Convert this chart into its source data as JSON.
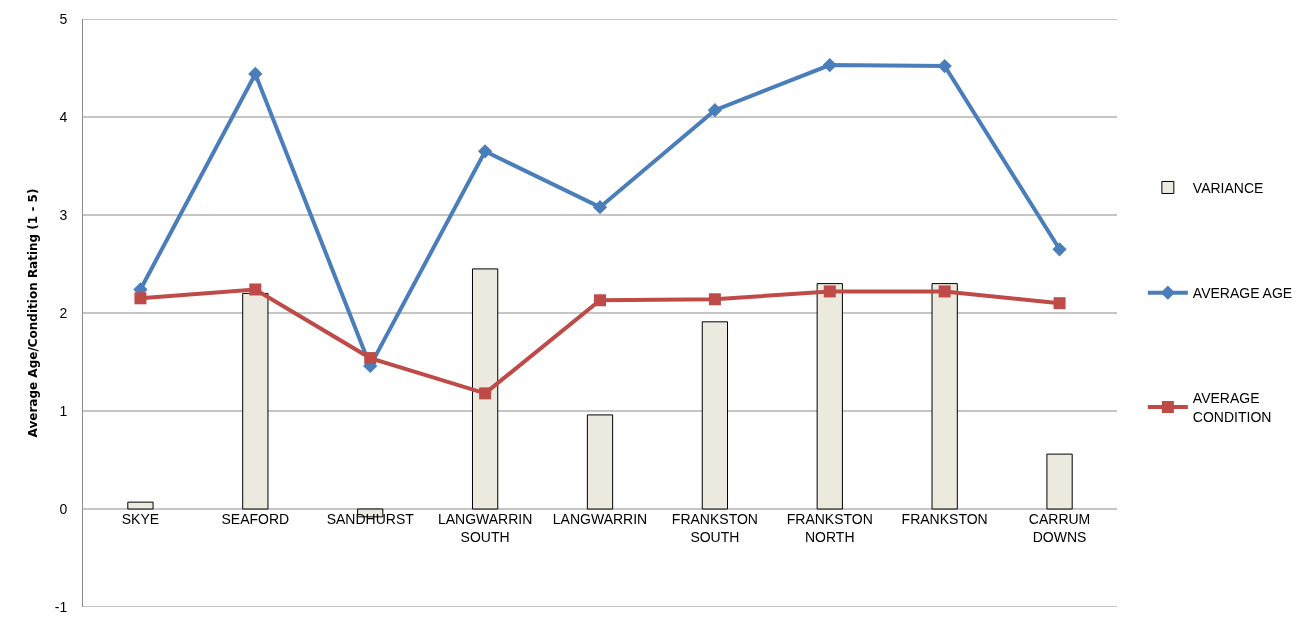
{
  "chart_data": {
    "type": "bar",
    "ylabel": "Average Age/Condition Rating (1 - 5)",
    "categories": [
      "SKYE",
      "SEAFORD",
      "SANDHURST",
      "LANGWARRIN SOUTH",
      "LANGWARRIN",
      "FRANKSTON SOUTH",
      "FRANKSTON NORTH",
      "FRANKSTON",
      "CARRUM DOWNS"
    ],
    "series": [
      {
        "name": "VARIANCE",
        "color": "#ece9df",
        "values": [
          0.07,
          2.2,
          -0.08,
          2.45,
          0.96,
          1.91,
          2.3,
          2.3,
          0.56
        ]
      },
      {
        "name": "AVERAGE AGE",
        "type": "line",
        "color": "#4a7ebb",
        "marker": "diamond",
        "values": [
          2.24,
          4.44,
          1.46,
          3.65,
          3.08,
          4.07,
          4.53,
          4.52,
          2.65
        ]
      },
      {
        "name": "AVERAGE CONDITION",
        "type": "line",
        "color": "#be4b48",
        "marker": "square",
        "values": [
          2.15,
          2.24,
          1.54,
          1.18,
          2.13,
          2.14,
          2.22,
          2.22,
          2.1
        ]
      }
    ],
    "ylim": [
      -1,
      5
    ],
    "yticks": [
      -1,
      0,
      1,
      2,
      3,
      4,
      5
    ],
    "grid": "y",
    "legend": "right"
  }
}
